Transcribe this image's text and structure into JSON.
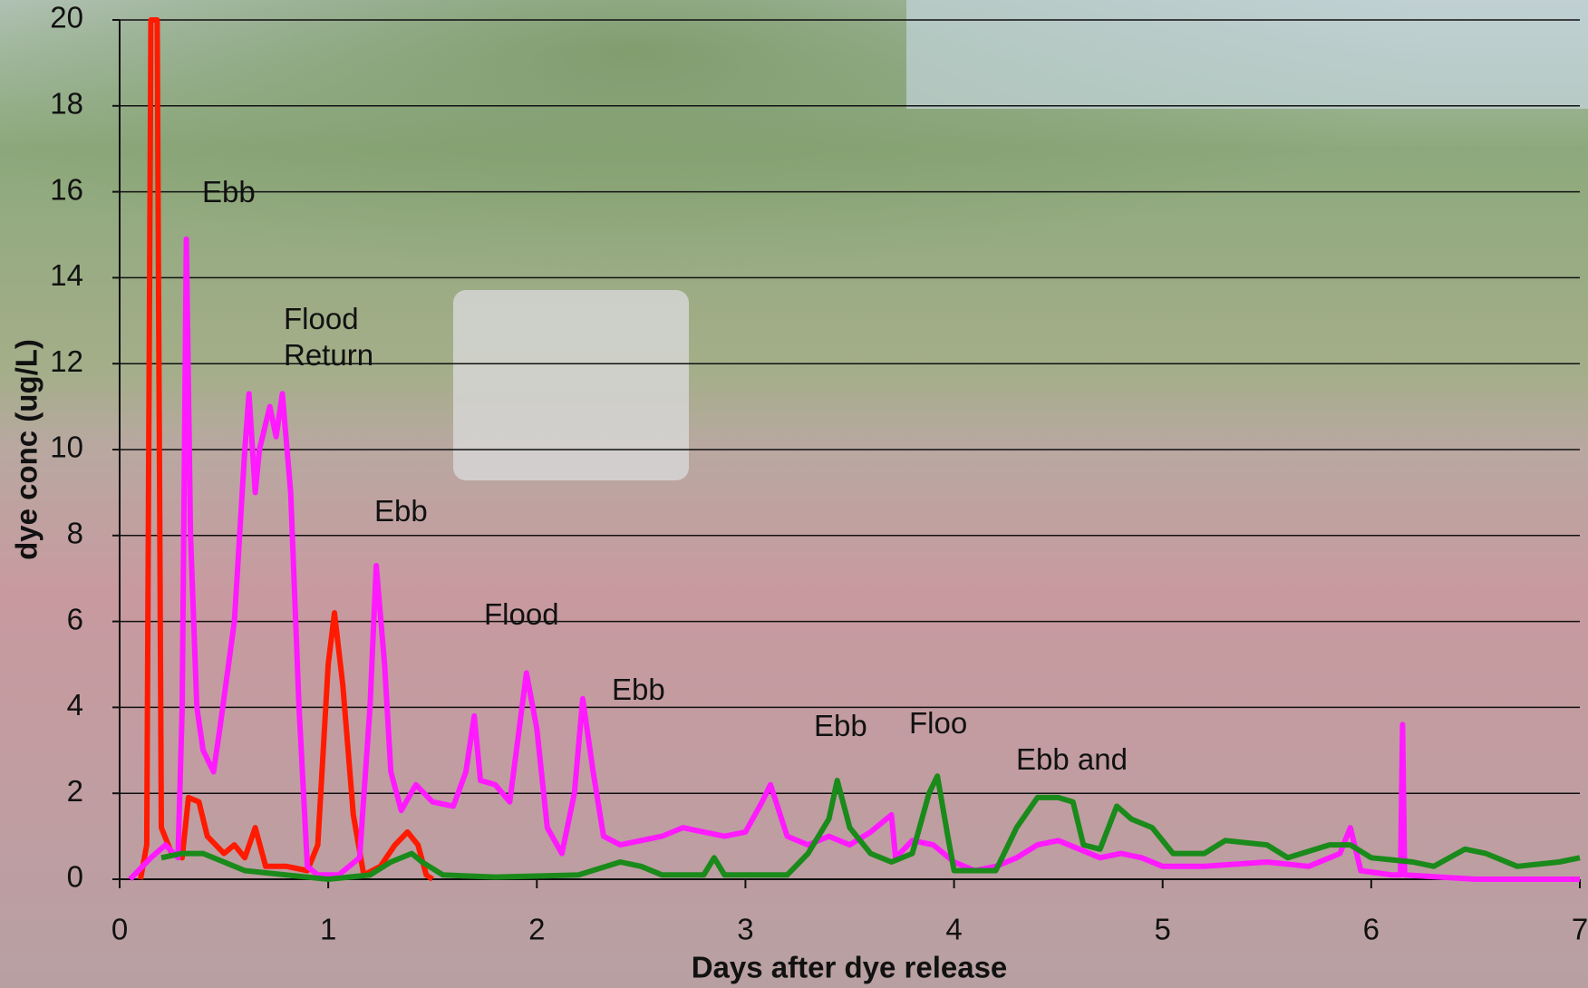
{
  "chart_data": {
    "type": "line",
    "ylabel": "dye conc (ug/L)",
    "xlabel": "Days after dye release",
    "xlim": [
      0,
      7
    ],
    "xticks": [
      0,
      1,
      2,
      3,
      4,
      5,
      6,
      7
    ],
    "ylim": [
      0,
      20
    ],
    "yticks": [
      0,
      2,
      4,
      6,
      8,
      10,
      12,
      14,
      16,
      18,
      20
    ],
    "grid": true,
    "annotations": [
      "Ebb",
      "Flood Return",
      "Ebb",
      "Flood",
      "Ebb",
      "Ebb",
      "Floo",
      "Ebb and"
    ],
    "series": [
      {
        "color": "#ff1a00",
        "x": [
          0.1,
          0.13,
          0.15,
          0.18,
          0.2,
          0.25,
          0.3,
          0.33,
          0.38,
          0.42,
          0.5,
          0.55,
          0.6,
          0.65,
          0.7,
          0.8,
          0.9,
          0.95,
          1.0,
          1.03,
          1.07,
          1.12,
          1.17,
          1.25,
          1.32,
          1.38,
          1.43,
          1.47,
          1.5
        ],
        "values": [
          0,
          0.8,
          20,
          20,
          1.2,
          0.6,
          0.5,
          1.9,
          1.8,
          1.0,
          0.6,
          0.8,
          0.5,
          1.2,
          0.3,
          0.3,
          0.2,
          0.8,
          5.0,
          6.2,
          4.5,
          1.5,
          0.1,
          0.3,
          0.8,
          1.1,
          0.8,
          0.1,
          0
        ]
      },
      {
        "color": "#ff1aff",
        "x": [
          0.05,
          0.15,
          0.22,
          0.28,
          0.3,
          0.32,
          0.34,
          0.37,
          0.4,
          0.45,
          0.48,
          0.55,
          0.6,
          0.62,
          0.65,
          0.67,
          0.72,
          0.75,
          0.78,
          0.82,
          0.86,
          0.9,
          0.95,
          1.05,
          1.15,
          1.2,
          1.23,
          1.27,
          1.3,
          1.35,
          1.42,
          1.5,
          1.6,
          1.66,
          1.7,
          1.73,
          1.8,
          1.87,
          1.95,
          2.0,
          2.05,
          2.12,
          2.18,
          2.22,
          2.27,
          2.32,
          2.4,
          2.5,
          2.6,
          2.7,
          2.8,
          2.9,
          3.0,
          3.08,
          3.12,
          3.2,
          3.3,
          3.4,
          3.5,
          3.6,
          3.7,
          3.72,
          3.8,
          3.9,
          4.0,
          4.1,
          4.2,
          4.3,
          4.4,
          4.5,
          4.6,
          4.7,
          4.8,
          4.9,
          5.0,
          5.2,
          5.5,
          5.7,
          5.85,
          5.9,
          5.95,
          6.1,
          6.14,
          6.15,
          6.16,
          6.5,
          7.0
        ],
        "values": [
          0,
          0.5,
          0.8,
          0.5,
          4,
          14.9,
          8,
          4,
          3,
          2.5,
          3.5,
          6,
          10,
          11.3,
          9,
          10,
          11.0,
          10.3,
          11.3,
          9,
          4,
          0.3,
          0.1,
          0.1,
          0.5,
          4,
          7.3,
          5,
          2.5,
          1.6,
          2.2,
          1.8,
          1.7,
          2.5,
          3.8,
          2.3,
          2.2,
          1.8,
          4.8,
          3.5,
          1.2,
          0.6,
          2.0,
          4.2,
          2.5,
          1.0,
          0.8,
          0.9,
          1.0,
          1.2,
          1.1,
          1.0,
          1.1,
          1.8,
          2.2,
          1.0,
          0.8,
          1.0,
          0.8,
          1.1,
          1.5,
          0.5,
          0.9,
          0.8,
          0.4,
          0.2,
          0.3,
          0.5,
          0.8,
          0.9,
          0.7,
          0.5,
          0.6,
          0.5,
          0.3,
          0.3,
          0.4,
          0.3,
          0.6,
          1.2,
          0.2,
          0.1,
          0.1,
          3.6,
          0.1,
          0,
          0
        ]
      },
      {
        "color": "#1a8a1a",
        "x": [
          0.2,
          0.3,
          0.4,
          0.5,
          0.6,
          0.8,
          1.0,
          1.2,
          1.3,
          1.4,
          1.45,
          1.55,
          1.8,
          2.2,
          2.4,
          2.5,
          2.6,
          2.8,
          2.85,
          2.9,
          3.2,
          3.3,
          3.4,
          3.44,
          3.5,
          3.6,
          3.7,
          3.8,
          3.88,
          3.92,
          3.97,
          4.0,
          4.2,
          4.3,
          4.4,
          4.5,
          4.57,
          4.62,
          4.7,
          4.78,
          4.85,
          4.95,
          5.05,
          5.2,
          5.3,
          5.5,
          5.6,
          5.8,
          5.9,
          6.0,
          6.2,
          6.3,
          6.45,
          6.55,
          6.7,
          6.9,
          7.0
        ],
        "values": [
          0.5,
          0.6,
          0.6,
          0.4,
          0.2,
          0.1,
          0.0,
          0.1,
          0.4,
          0.6,
          0.4,
          0.1,
          0.05,
          0.1,
          0.4,
          0.3,
          0.1,
          0.1,
          0.5,
          0.1,
          0.1,
          0.6,
          1.4,
          2.3,
          1.2,
          0.6,
          0.4,
          0.6,
          2.0,
          2.4,
          1.0,
          0.2,
          0.2,
          1.2,
          1.9,
          1.9,
          1.8,
          0.8,
          0.7,
          1.7,
          1.4,
          1.2,
          0.6,
          0.6,
          0.9,
          0.8,
          0.5,
          0.8,
          0.8,
          0.5,
          0.4,
          0.3,
          0.7,
          0.6,
          0.3,
          0.4,
          0.5
        ]
      }
    ]
  }
}
